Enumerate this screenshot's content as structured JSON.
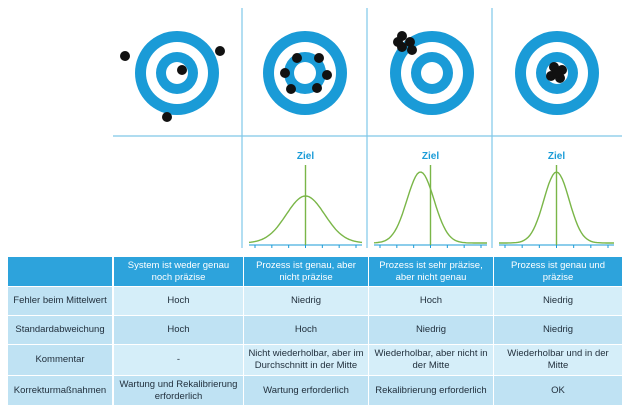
{
  "colors": {
    "blue": "#1a9bd7",
    "green": "#7ab648",
    "divider": "#7fc7e8",
    "table_header": "#2da3dc",
    "table_label_col": "#bfe2f3",
    "row_odd": "#d5eef9",
    "row_even": "#bfe2f3",
    "dot": "#111111"
  },
  "targets": [
    {
      "name": "target-inaccurate-imprecise",
      "dot_pattern": "scattered"
    },
    {
      "name": "target-accurate-imprecise",
      "dot_pattern": "ring"
    },
    {
      "name": "target-precise-inaccurate",
      "dot_pattern": "cluster-off-center"
    },
    {
      "name": "target-accurate-precise",
      "dot_pattern": "cluster-center"
    }
  ],
  "distributions": [
    {
      "label": "Ziel",
      "shape": "wide-centered"
    },
    {
      "label": "Ziel",
      "shape": "narrow-shifted-left"
    },
    {
      "label": "Ziel",
      "shape": "narrow-centered"
    }
  ],
  "table": {
    "headers": [
      "",
      "System ist weder genau noch präzise",
      "Prozess ist genau, aber nicht präzise",
      "Prozess ist sehr präzise, aber nicht genau",
      "Prozess ist genau und präzise"
    ],
    "rows": [
      {
        "label": "Fehler beim Mittelwert",
        "cells": [
          "Hoch",
          "Niedrig",
          "Hoch",
          "Niedrig"
        ]
      },
      {
        "label": "Standardabweichung",
        "cells": [
          "Hoch",
          "Hoch",
          "Niedrig",
          "Niedrig"
        ]
      },
      {
        "label": "Kommentar",
        "cells": [
          "-",
          "Nicht wiederholbar, aber im Durchschnitt in der Mitte",
          "Wiederholbar, aber nicht in der Mitte",
          "Wiederholbar und in der Mitte"
        ]
      },
      {
        "label": "Korrekturmaßnahmen",
        "cells": [
          "Wartung und Rekalibrierung erforderlich",
          "Wartung erforderlich",
          "Rekalibrierung erforderlich",
          "OK"
        ]
      }
    ]
  }
}
